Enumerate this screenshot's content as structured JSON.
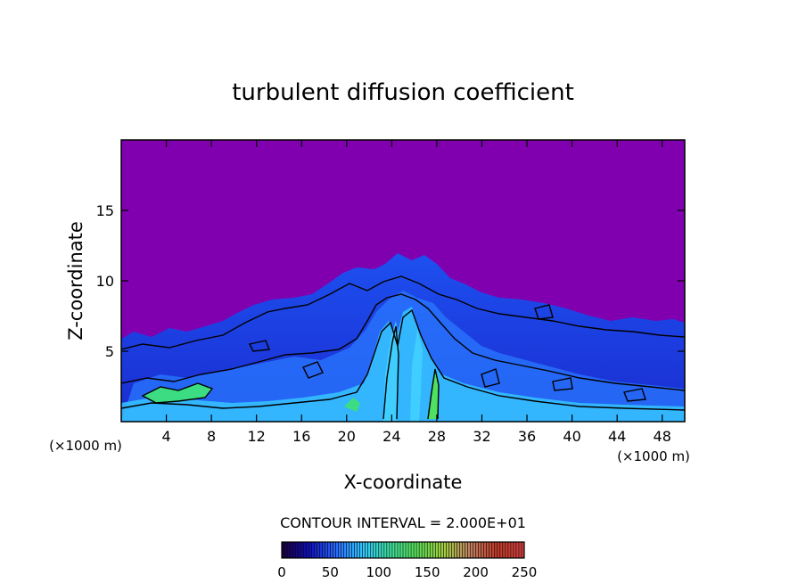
{
  "chart_data": {
    "type": "heatmap",
    "title": "turbulent diffusion coefficient",
    "xlabel": "X-coordinate",
    "ylabel": "Z-coordinate",
    "x_unit_left": "(×1000 m)",
    "x_unit_right": "(×1000 m)",
    "xlim": [
      0,
      50
    ],
    "ylim": [
      0,
      20
    ],
    "x_ticks": [
      4,
      8,
      12,
      16,
      20,
      24,
      28,
      32,
      36,
      40,
      44,
      48
    ],
    "y_ticks": [
      5,
      10,
      15
    ],
    "contour_interval_text": "CONTOUR INTERVAL = 2.000E+01",
    "colorbar": {
      "min": 0,
      "max": 250,
      "ticks": [
        0,
        50,
        100,
        150,
        200,
        250
      ],
      "colors": [
        "#1a0040",
        "#1010c0",
        "#2a6cff",
        "#30c8ff",
        "#40e0a0",
        "#5ae05a",
        "#a0d040",
        "#c08060",
        "#c03a2a",
        "#d04040"
      ]
    },
    "colors": {
      "background_field": "#8000b0",
      "low": "#1414c8",
      "mid": "#1e64ff",
      "high": "#32c8ff",
      "peak": "#3cdc82"
    },
    "grid": false,
    "legend": "colorbar-bottom"
  }
}
